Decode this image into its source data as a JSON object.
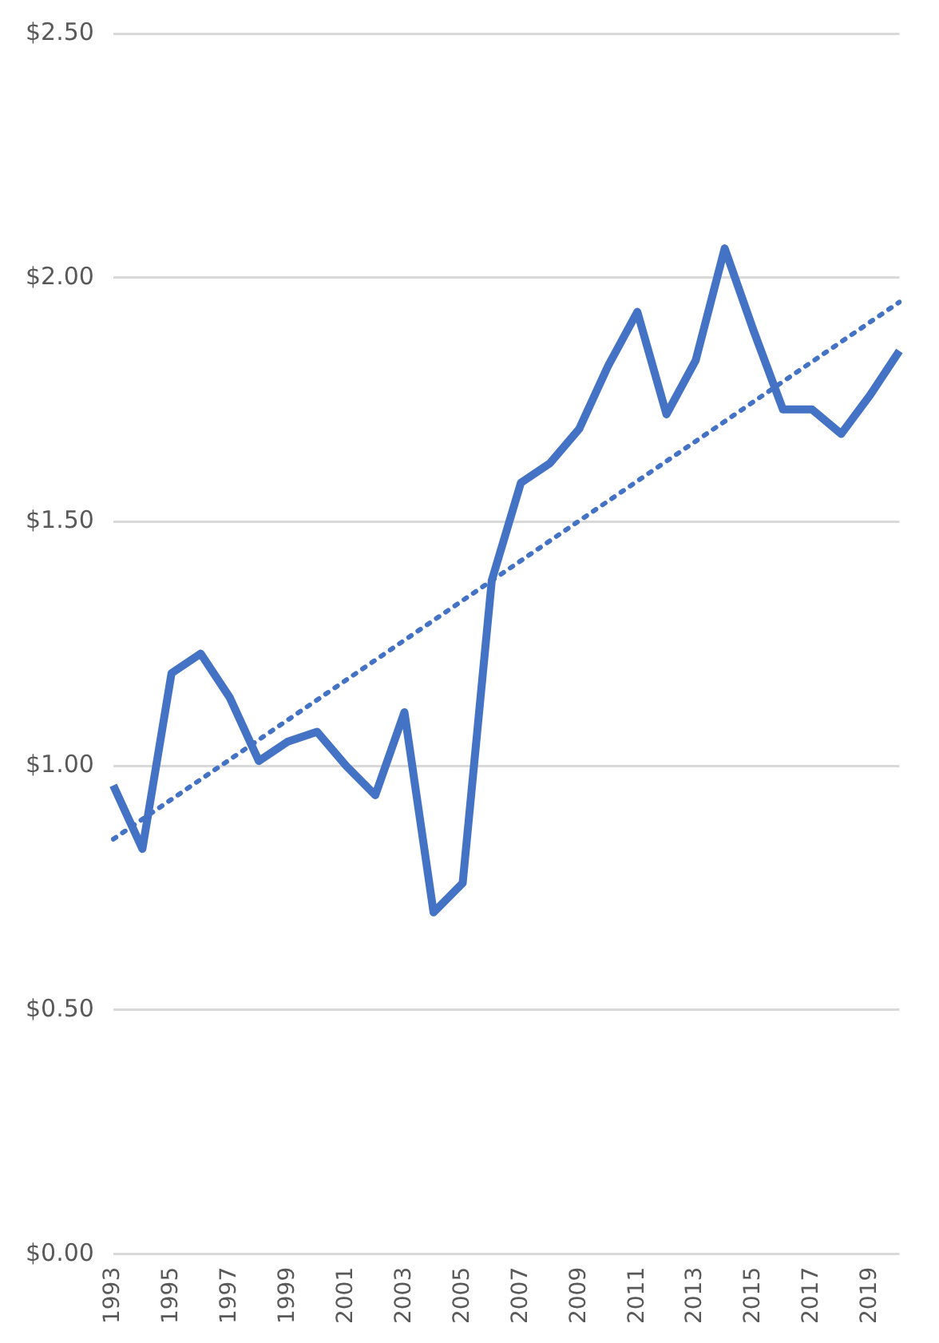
{
  "chart_data": {
    "type": "line",
    "categories": [
      "1993",
      null,
      "1995",
      null,
      "1997",
      null,
      "1999",
      null,
      "2001",
      null,
      "2003",
      null,
      "2005",
      null,
      "2007",
      null,
      "2009",
      null,
      "2011",
      null,
      "2013",
      null,
      "2015",
      null,
      "2017",
      null,
      "2019",
      null
    ],
    "series": [
      {
        "color": "#4472c4",
        "line_style": "solid",
        "values": [
          0.96,
          0.83,
          1.19,
          1.23,
          1.14,
          1.01,
          1.05,
          1.07,
          1.0,
          0.94,
          1.11,
          0.7,
          0.76,
          1.38,
          1.58,
          1.62,
          1.69,
          1.82,
          1.93,
          1.72,
          1.83,
          2.06,
          1.89,
          1.73,
          1.73,
          1.68,
          1.76,
          1.85
        ]
      },
      {
        "color": "#4472c4",
        "line_style": "dotted",
        "values": [
          0.85,
          null,
          null,
          null,
          null,
          null,
          null,
          null,
          null,
          null,
          null,
          null,
          null,
          null,
          null,
          null,
          null,
          null,
          null,
          null,
          null,
          null,
          null,
          null,
          null,
          null,
          null,
          1.95
        ]
      }
    ],
    "ylim": [
      0,
      2.5
    ],
    "yticks": [
      {
        "value": 0,
        "label": "$0.00"
      },
      {
        "value": 0.5,
        "label": "$0.50"
      },
      {
        "value": 1,
        "label": "$1.00"
      },
      {
        "value": 1.5,
        "label": "$1.50"
      },
      {
        "value": 2,
        "label": "$2.00"
      },
      {
        "value": 2.5,
        "label": "$2.50"
      }
    ],
    "grid": "y",
    "legend": false,
    "marker": "none"
  }
}
